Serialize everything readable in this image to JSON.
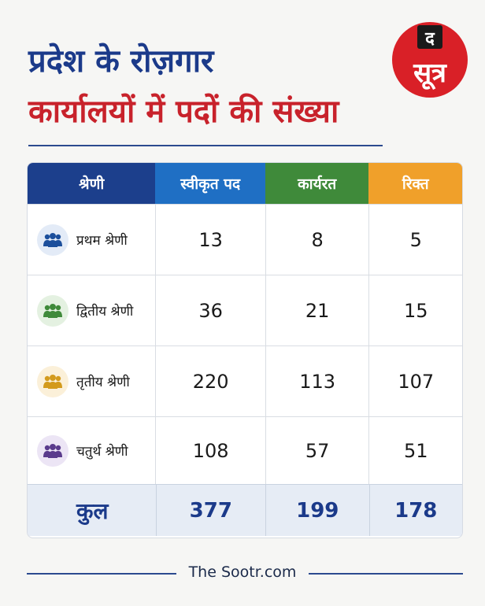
{
  "title": {
    "line1": "प्रदेश के रोज़गार",
    "line2": "कार्यालयों में पदों की संख्या"
  },
  "logo": {
    "top_text": "द",
    "main_text": "सूत्र"
  },
  "colors": {
    "title_blue": "#1b3a8a",
    "title_red": "#c8222b",
    "header_navy": "#1c3f8c",
    "header_blue": "#1f6fc4",
    "header_green": "#3f8a3a",
    "header_orange": "#f0a02a",
    "logo_red": "#d92027"
  },
  "table": {
    "headers": [
      "श्रेणी",
      "स्वीकृत पद",
      "कार्यरत",
      "रिक्त"
    ],
    "rows": [
      {
        "category": "प्रथम श्रेणी",
        "icon": "group-people-icon",
        "icon_color": "#1c4f9c",
        "icon_bg": "#e3ebf7",
        "sanctioned": "13",
        "working": "8",
        "vacant": "5"
      },
      {
        "category": "द्वितीय श्रेणी",
        "icon": "group-people-icon",
        "icon_color": "#3f8a3a",
        "icon_bg": "#e4f1e1",
        "sanctioned": "36",
        "working": "21",
        "vacant": "15"
      },
      {
        "category": "तृतीय श्रेणी",
        "icon": "group-people-icon",
        "icon_color": "#d39a1c",
        "icon_bg": "#fbf0d9",
        "sanctioned": "220",
        "working": "113",
        "vacant": "107"
      },
      {
        "category": "चतुर्थ श्रेणी",
        "icon": "group-people-icon",
        "icon_color": "#5a3b8c",
        "icon_bg": "#ece5f5",
        "sanctioned": "108",
        "working": "57",
        "vacant": "51"
      }
    ],
    "total": {
      "label": "कुल",
      "sanctioned": "377",
      "working": "199",
      "vacant": "178"
    }
  },
  "chart_data": {
    "type": "table",
    "columns": [
      "श्रेणी",
      "स्वीकृत पद",
      "कार्यरत",
      "रिक्त"
    ],
    "categories": [
      "प्रथम श्रेणी",
      "द्वितीय श्रेणी",
      "तृतीय श्रेणी",
      "चतुर्थ श्रेणी"
    ],
    "series": [
      {
        "name": "स्वीकृत पद",
        "values": [
          13,
          36,
          220,
          108
        ]
      },
      {
        "name": "कार्यरत",
        "values": [
          8,
          21,
          113,
          57
        ]
      },
      {
        "name": "रिक्त",
        "values": [
          5,
          15,
          107,
          51
        ]
      }
    ],
    "totals": {
      "स्वीकृत पद": 377,
      "कार्यरत": 199,
      "रिक्त": 178
    },
    "title": "प्रदेश के रोज़गार कार्यालयों में पदों की संख्या"
  },
  "footer": {
    "text": "The Sootr.com"
  }
}
